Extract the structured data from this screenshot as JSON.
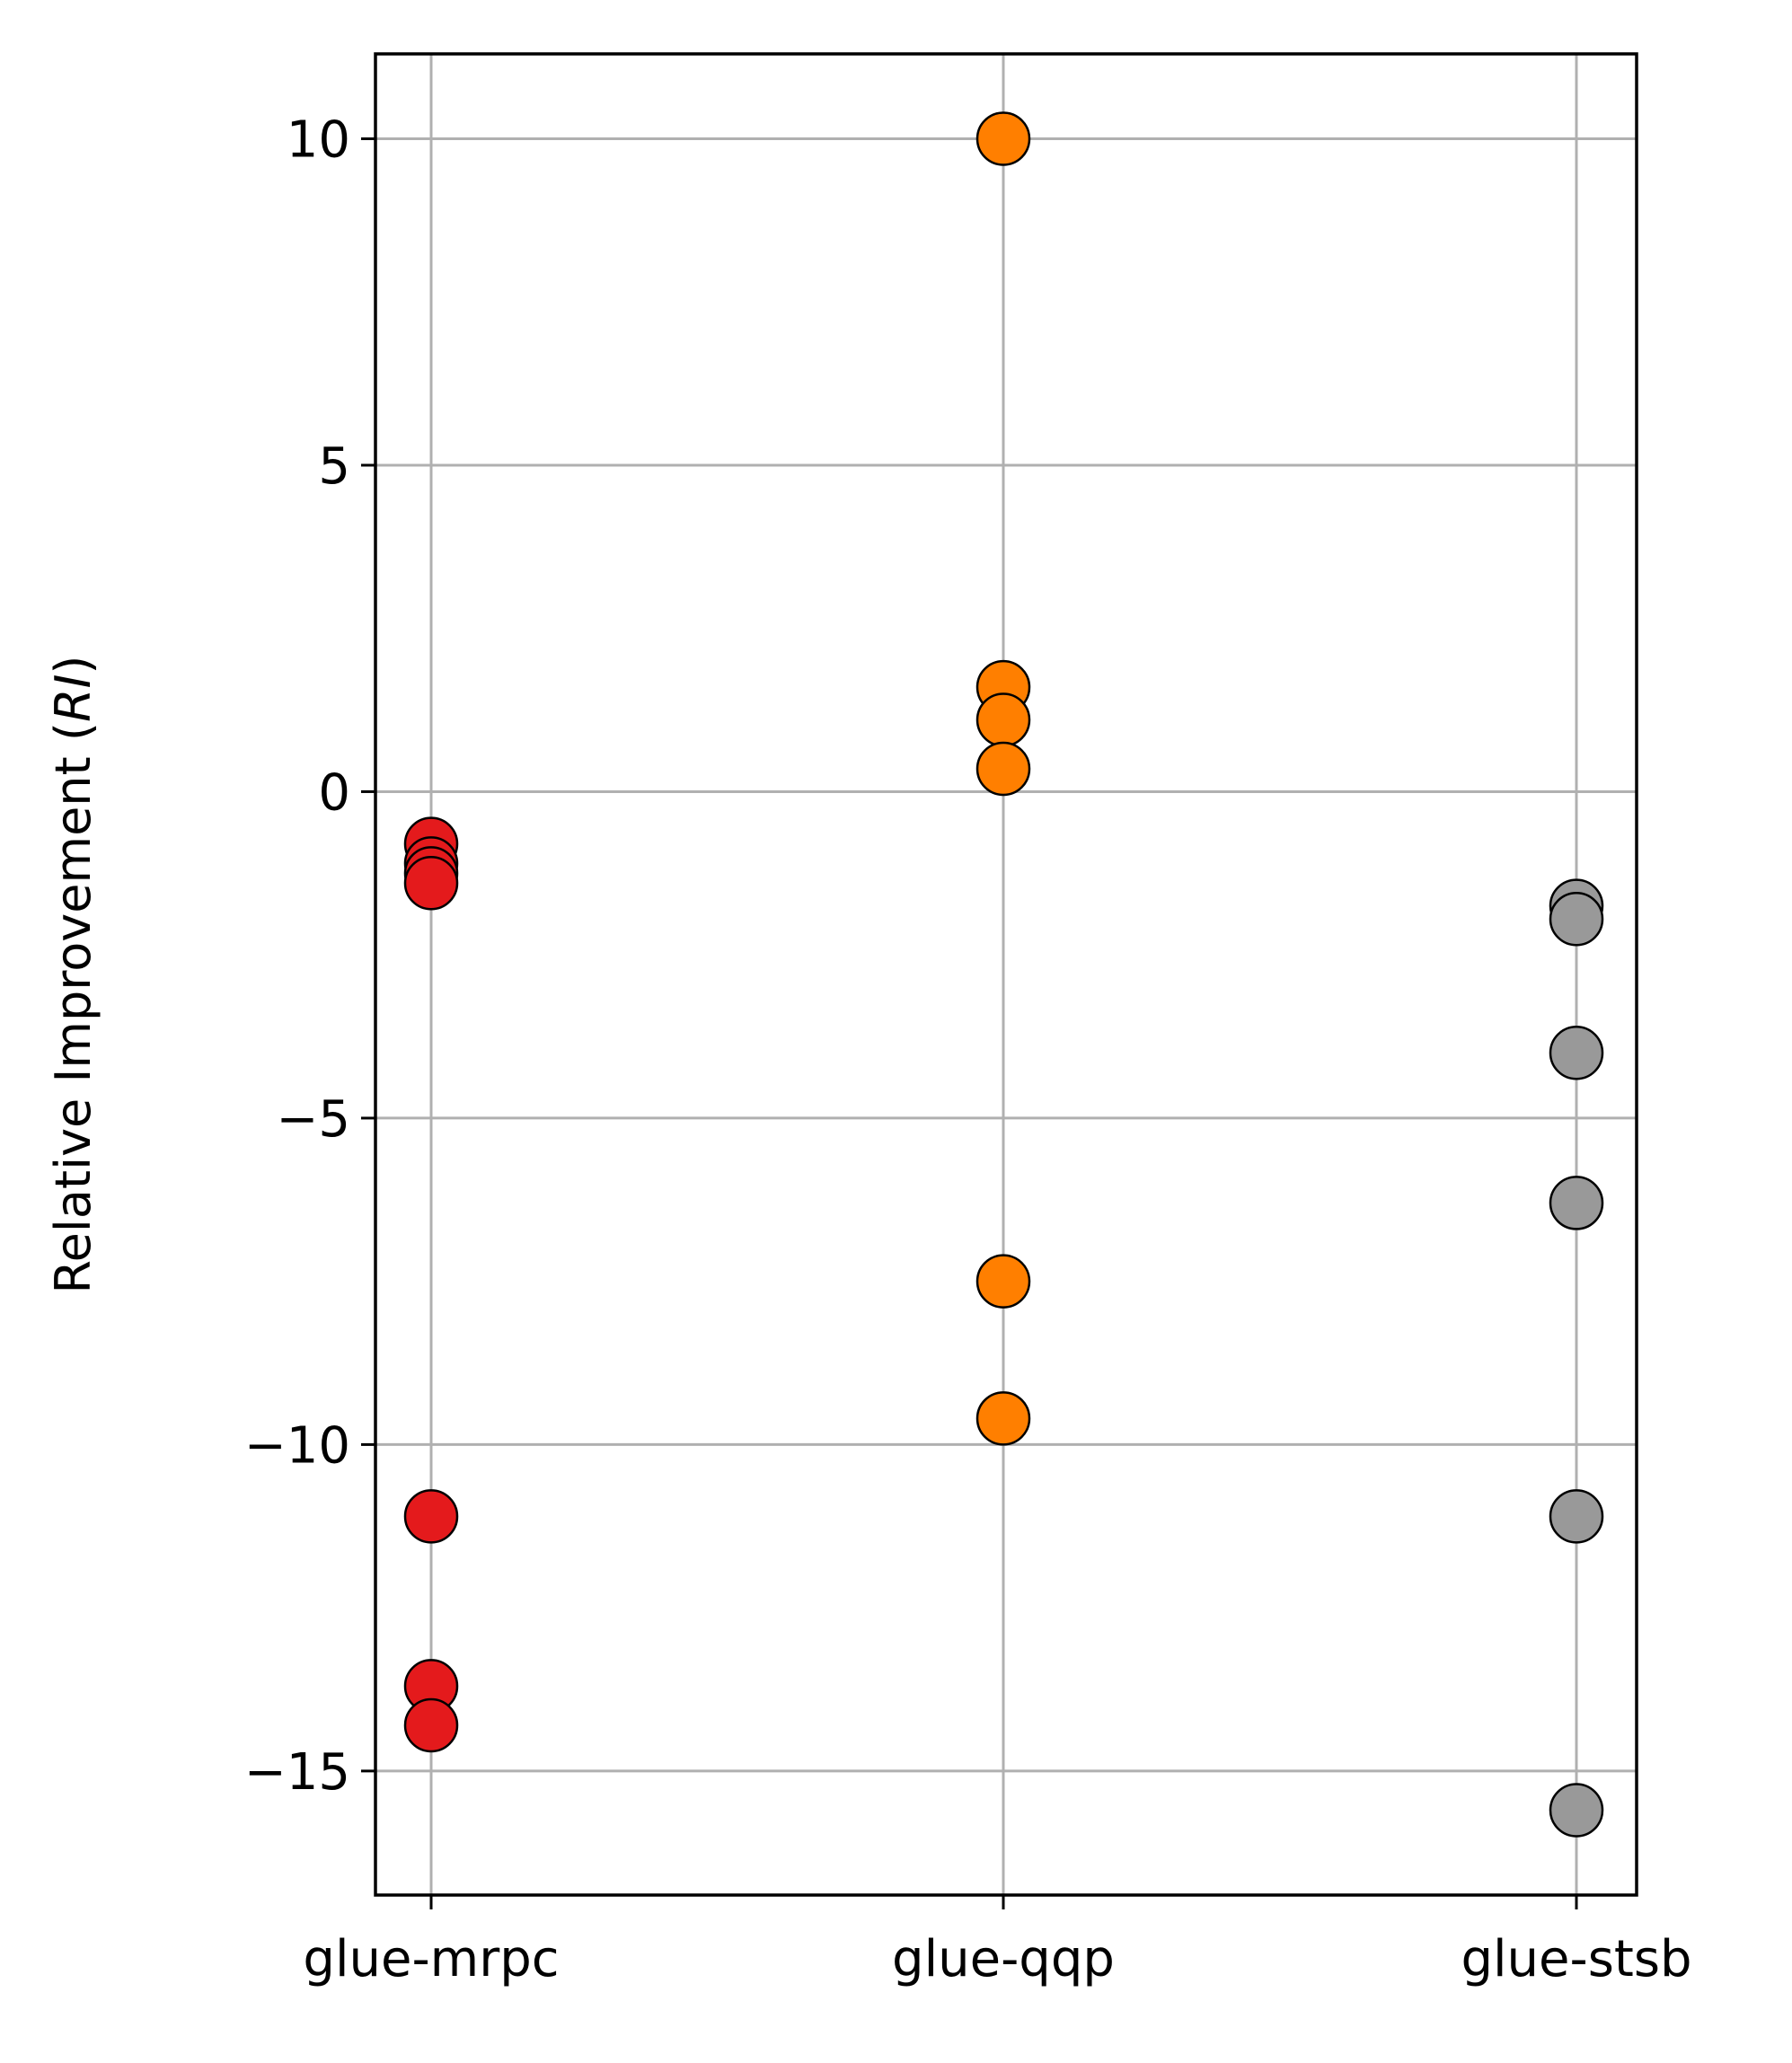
{
  "chart_data": {
    "type": "scatter",
    "title": "",
    "xlabel": "",
    "ylabel": "Relative Improvement (",
    "ylabel_italic": "RI",
    "ylabel_suffix": ")",
    "categories": [
      "glue-mrpc",
      "glue-qqp",
      "glue-stsb"
    ],
    "ylim": [
      -16.9,
      11.3
    ],
    "yticks": [
      10,
      5,
      0,
      -5,
      -10,
      -15
    ],
    "ytick_labels": [
      "10",
      "5",
      "0",
      "−5",
      "−10",
      "−15"
    ],
    "grid": true,
    "legend": "none",
    "series": [
      {
        "category": "glue-mrpc",
        "color": "#e41a1c",
        "values": [
          -0.8,
          -1.1,
          -1.25,
          -1.4,
          -11.1,
          -13.7,
          -14.3
        ]
      },
      {
        "category": "glue-qqp",
        "color": "#ff7f00",
        "values": [
          10.0,
          1.6,
          1.1,
          0.35,
          -7.5,
          -9.6
        ]
      },
      {
        "category": "glue-stsb",
        "color": "#999999",
        "values": [
          -1.75,
          -1.95,
          -4.0,
          -6.3,
          -11.1,
          -15.6
        ]
      }
    ]
  }
}
